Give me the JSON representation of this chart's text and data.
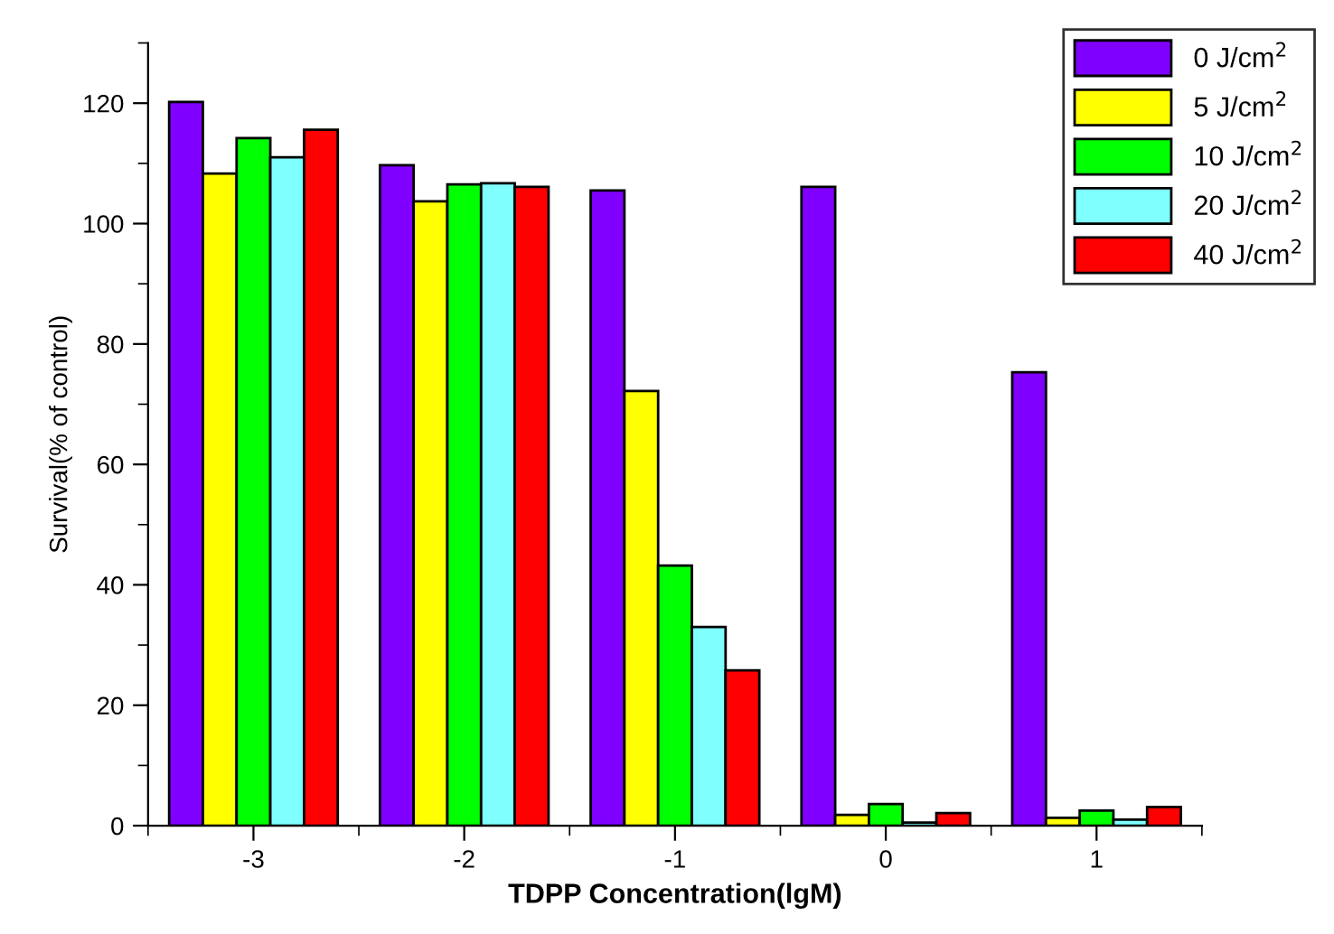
{
  "chart_data": {
    "type": "bar",
    "xlabel": "TDPP Concentration(lgM)",
    "ylabel": "Survival(% of control)",
    "categories": [
      "-3",
      "-2",
      "-1",
      "0",
      "1"
    ],
    "series": [
      {
        "name": "0 J/cm$^{2}$",
        "color": "#8000ff",
        "values": [
          120.2,
          109.7,
          105.5,
          106.1,
          75.3
        ]
      },
      {
        "name": "5 J/cm$^{2}$",
        "color": "#ffff00",
        "values": [
          108.3,
          103.7,
          72.2,
          1.8,
          1.3
        ]
      },
      {
        "name": "10 J/cm$^{2}$",
        "color": "#00ff00",
        "values": [
          114.2,
          106.5,
          43.2,
          3.6,
          2.5
        ]
      },
      {
        "name": "20 J/cm$^{2}$",
        "color": "#80ffff",
        "values": [
          111.0,
          106.7,
          33.0,
          0.5,
          1.0
        ]
      },
      {
        "name": "40 J/cm$^{2}$",
        "color": "#ff0000",
        "values": [
          115.6,
          106.1,
          25.8,
          2.1,
          3.1
        ]
      }
    ],
    "ylim": [
      0,
      130
    ],
    "yticks": [
      0,
      20,
      40,
      60,
      80,
      100,
      120
    ],
    "legend": "top right",
    "grid": false
  }
}
